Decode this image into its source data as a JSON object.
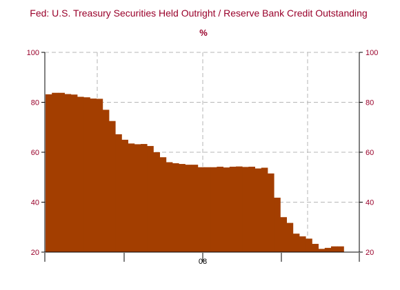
{
  "chart_data": {
    "type": "bar",
    "title": "Fed: U.S. Treasury Securities Held Outright / Reserve Bank Credit Outstanding",
    "subtitle": "%",
    "xlabel": "",
    "ylabel": "",
    "x_tick_labels": [
      "08"
    ],
    "y_ticks": [
      20,
      40,
      60,
      80,
      100
    ],
    "ylim": [
      20,
      100
    ],
    "grid": true,
    "legend": "none",
    "values": [
      83.2,
      83.8,
      83.8,
      83.3,
      83.1,
      82.2,
      82.0,
      81.5,
      81.4,
      77.0,
      72.5,
      67.2,
      65.0,
      63.5,
      63.2,
      63.3,
      62.5,
      60.0,
      58.0,
      56.0,
      55.6,
      55.3,
      55.0,
      55.0,
      54.0,
      54.0,
      54.0,
      54.2,
      53.9,
      54.2,
      54.3,
      54.1,
      54.2,
      53.5,
      53.8,
      51.5,
      41.8,
      34.0,
      31.7,
      27.4,
      26.3,
      25.4,
      23.3,
      21.3,
      21.7,
      22.3,
      22.3
    ],
    "colors": {
      "bar": "#a33e00",
      "title": "#99002a",
      "axis": "#000000",
      "grid": "#b5b5b5",
      "tick_label": "#99002a"
    }
  }
}
